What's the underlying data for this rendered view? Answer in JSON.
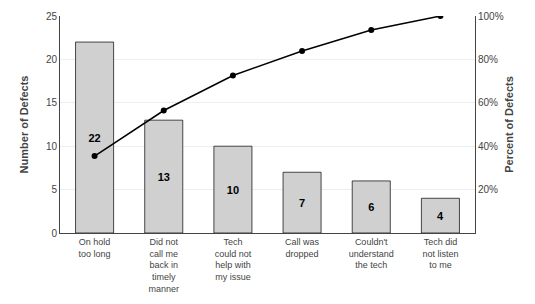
{
  "chart_data": {
    "type": "bar",
    "categories": [
      "On hold\ntoo long",
      "Did not\ncall me\nback in\ntimely\nmanner",
      "Tech\ncould not\nhelp with\nmy issue",
      "Call was\ndropped",
      "Couldn't\nunderstand\nthe tech",
      "Tech did\nnot listen\nto me"
    ],
    "series": [
      {
        "type": "bar",
        "color": "#d0d0d0",
        "values": [
          22,
          13,
          10,
          7,
          6,
          4
        ],
        "data_labels": true
      },
      {
        "type": "line",
        "axis": "y2",
        "color": "#000000",
        "marker": "circle",
        "values": [
          35.48,
          56.45,
          72.58,
          83.87,
          93.55,
          100.0
        ]
      }
    ],
    "ylabel": "Number of Defects",
    "y2label": "Percent of Defects",
    "ylim": [
      0,
      25
    ],
    "yticks": [
      0,
      5,
      10,
      15,
      20,
      25
    ],
    "y2lim": [
      0,
      100
    ],
    "y2ticks": [
      {
        "value": 20,
        "label": "20%"
      },
      {
        "value": 40,
        "label": "40%"
      },
      {
        "value": 60,
        "label": "60%"
      },
      {
        "value": 80,
        "label": "80%"
      },
      {
        "value": 100,
        "label": "100%"
      }
    ],
    "grid": true
  }
}
